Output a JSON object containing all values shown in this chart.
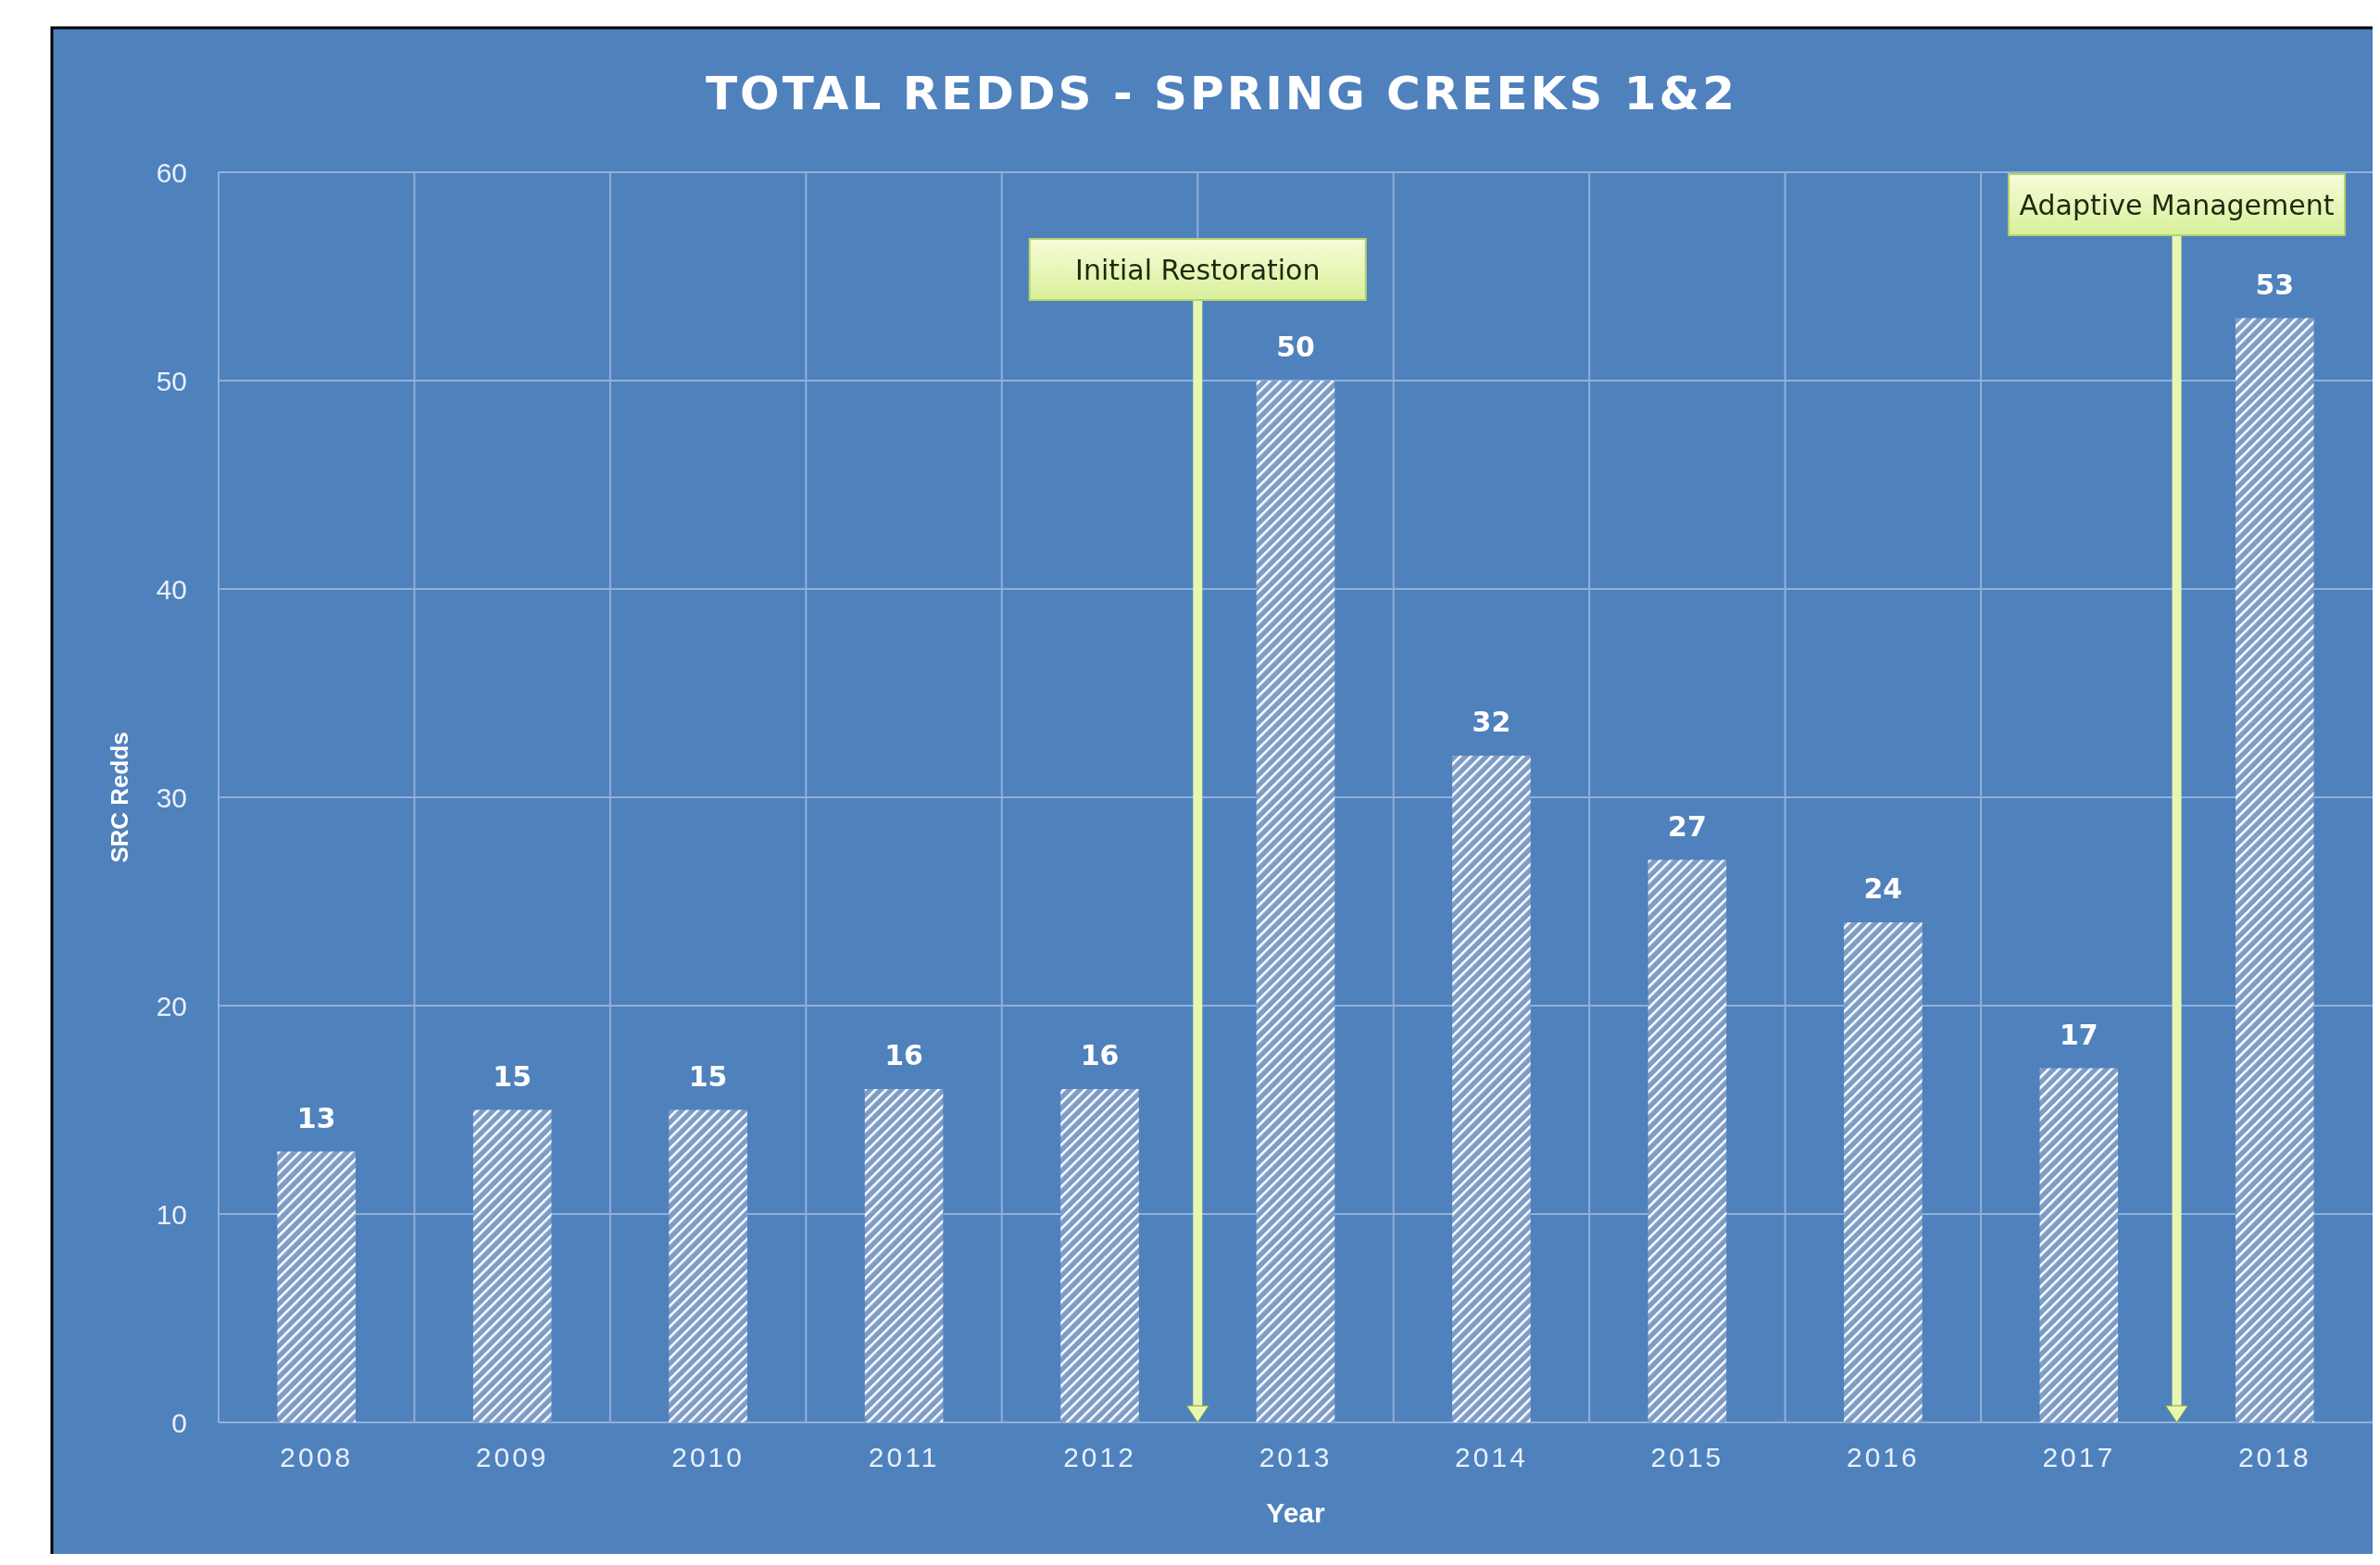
{
  "chart_data": {
    "type": "bar",
    "title": "TOTAL REDDS - SPRING CREEKS 1&2",
    "xlabel": "Year",
    "ylabel": "SRC Redds",
    "x": [
      2008,
      2009,
      2010,
      2011,
      2012,
      2013,
      2014,
      2015,
      2016,
      2017,
      2018
    ],
    "series": [
      {
        "color": "#ffffff",
        "values": [
          13,
          15,
          15,
          16,
          16,
          50,
          32,
          27,
          24,
          17,
          53
        ]
      }
    ],
    "xlim": [
      2007.5,
      2018.5
    ],
    "xticks": [
      2008,
      2009,
      2010,
      2011,
      2012,
      2013,
      2014,
      2015,
      2016,
      2017,
      2018
    ],
    "ylim": [
      0,
      60
    ],
    "yticks": [
      0,
      10,
      20,
      30,
      40,
      50,
      60
    ],
    "grid": true,
    "data_labels": true,
    "ref_lines": [
      {
        "axis": "x",
        "value": 2012.5,
        "label": "Initial Restoration",
        "color": "#e8f7b0"
      },
      {
        "axis": "x",
        "value": 2017.5,
        "label": "Adaptive Management",
        "color": "#e8f7b0"
      }
    ]
  }
}
